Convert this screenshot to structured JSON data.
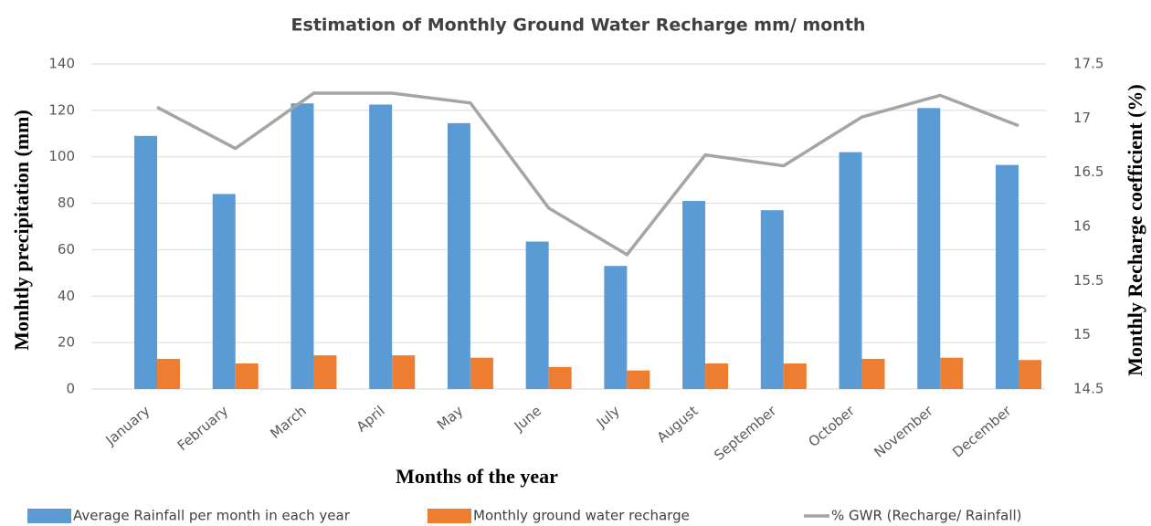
{
  "chart_data": {
    "type": "bar",
    "title": "Estimation of Monthly Ground Water Recharge mm/ month",
    "x_label": "Months of the year",
    "y_label": "Monhtly precipitation (mm)",
    "y2_label": "Monthly Recharge coefficient (%)",
    "categories": [
      "January",
      "February",
      "March",
      "April",
      "May",
      "June",
      "July",
      "August",
      "September",
      "October",
      "November",
      "December"
    ],
    "series": [
      {
        "name": "Average Rainfall  per month in each year",
        "type": "bar",
        "color": "#5b9bd5",
        "values": [
          109,
          84,
          123,
          122.5,
          114.5,
          63.5,
          53,
          81,
          77,
          102,
          121,
          96.5
        ]
      },
      {
        "name": "Monthly ground water recharge",
        "type": "bar",
        "color": "#ed7d31",
        "values": [
          13,
          11,
          14.5,
          14.5,
          13.5,
          9.5,
          8,
          11,
          11,
          13,
          13.5,
          12.5
        ]
      },
      {
        "name": "% GWR (Recharge/ Rainfall)",
        "type": "line",
        "axis": "y2",
        "color": "#a5a5a5",
        "values": [
          17.1,
          16.72,
          17.23,
          17.23,
          17.14,
          16.17,
          15.74,
          16.66,
          16.56,
          17.01,
          17.21,
          16.93
        ]
      }
    ],
    "ylim": [
      0,
      140
    ],
    "yticks": [
      0,
      20,
      40,
      60,
      80,
      100,
      120,
      140
    ],
    "y2lim": [
      14.5,
      17.5
    ],
    "y2ticks": [
      14.5,
      15,
      15.5,
      16,
      16.5,
      17,
      17.5
    ],
    "grid": true,
    "legend": "bottom"
  }
}
